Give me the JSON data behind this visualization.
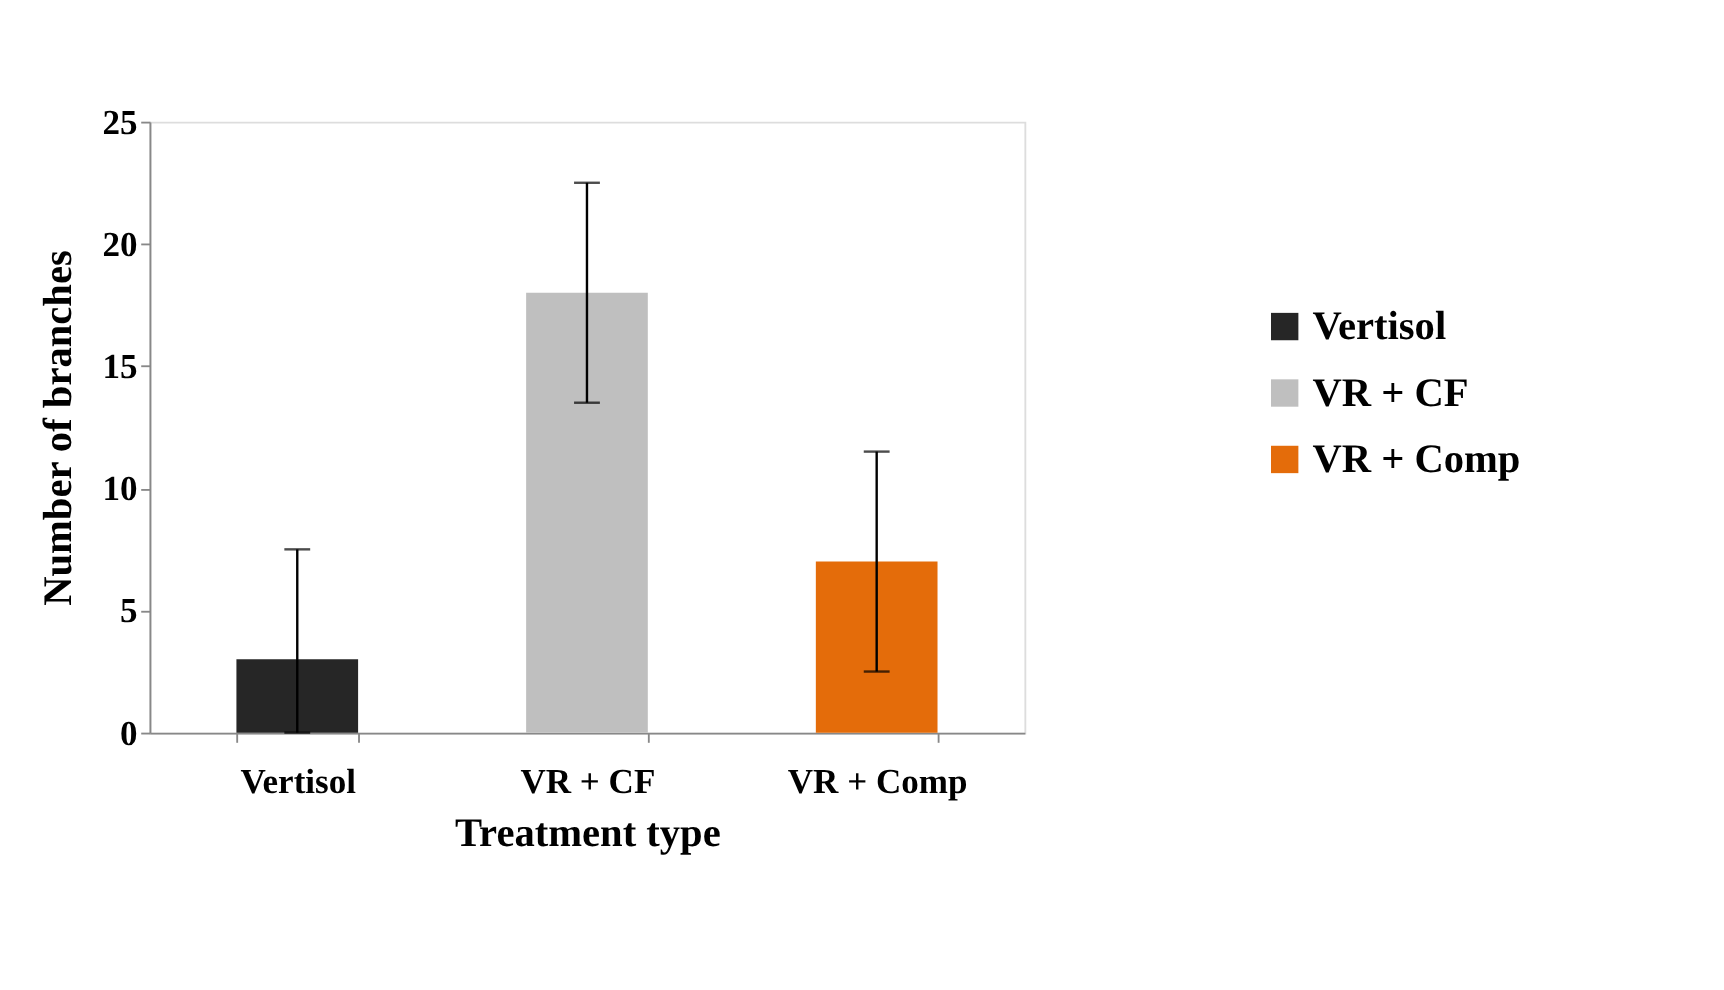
{
  "chart_data": {
    "type": "bar",
    "xlabel": "Treatment type",
    "ylabel": "Number of branches",
    "categories": [
      "Vertisol",
      "VR + CF",
      "VR + Comp"
    ],
    "series": [
      {
        "name": "Vertisol",
        "color": "#262626",
        "values": [
          3,
          null,
          null
        ],
        "errors": [
          [
            0,
            7.5
          ],
          null,
          null
        ]
      },
      {
        "name": "VR + CF",
        "color": "#bfbfbf",
        "values": [
          null,
          18,
          null
        ],
        "errors": [
          null,
          [
            13.5,
            22.5
          ],
          null
        ]
      },
      {
        "name": "VR + Comp",
        "color": "#e46c0a",
        "values": [
          null,
          null,
          7
        ],
        "errors": [
          null,
          null,
          [
            2.5,
            11.5
          ]
        ]
      }
    ],
    "ylim": [
      0,
      25
    ],
    "yticks": [
      0,
      5,
      10,
      15,
      20,
      25
    ],
    "grid": false,
    "legend": "right"
  }
}
